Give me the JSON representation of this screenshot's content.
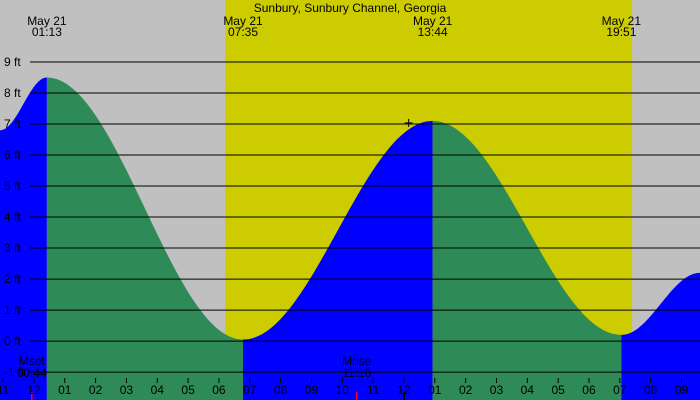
{
  "chart_data": {
    "type": "area",
    "title": "Sunbury, Sunbury Channel, Georgia",
    "xlabel": "",
    "ylabel": "",
    "x_range_hours": [
      23.7,
      46.4
    ],
    "ylim": [
      -1.9,
      11.0
    ],
    "yticks": [
      {
        "value": -1,
        "label": "-1 ft"
      },
      {
        "value": 0,
        "label": "0 ft"
      },
      {
        "value": 1,
        "label": "1 ft"
      },
      {
        "value": 2,
        "label": "2 ft"
      },
      {
        "value": 3,
        "label": "3 ft"
      },
      {
        "value": 4,
        "label": "4 ft"
      },
      {
        "value": 5,
        "label": "5 ft"
      },
      {
        "value": 6,
        "label": "6 ft"
      },
      {
        "value": 7,
        "label": "7 ft"
      },
      {
        "value": 8,
        "label": "8 ft"
      },
      {
        "value": 9,
        "label": "9 ft"
      }
    ],
    "hour_ticks": [
      {
        "hour": 23.8,
        "label": "11"
      },
      {
        "hour": 24.8,
        "label": "12"
      },
      {
        "hour": 25.8,
        "label": "01"
      },
      {
        "hour": 26.8,
        "label": "02"
      },
      {
        "hour": 27.8,
        "label": "03"
      },
      {
        "hour": 28.8,
        "label": "04"
      },
      {
        "hour": 29.8,
        "label": "05"
      },
      {
        "hour": 30.8,
        "label": "06"
      },
      {
        "hour": 31.8,
        "label": "07"
      },
      {
        "hour": 32.8,
        "label": "08"
      },
      {
        "hour": 33.8,
        "label": "09"
      },
      {
        "hour": 34.8,
        "label": "10"
      },
      {
        "hour": 35.8,
        "label": "11"
      },
      {
        "hour": 36.8,
        "label": "12"
      },
      {
        "hour": 37.8,
        "label": "01"
      },
      {
        "hour": 38.8,
        "label": "02"
      },
      {
        "hour": 39.8,
        "label": "03"
      },
      {
        "hour": 40.8,
        "label": "04"
      },
      {
        "hour": 41.8,
        "label": "05"
      },
      {
        "hour": 42.8,
        "label": "06"
      },
      {
        "hour": 43.8,
        "label": "07"
      },
      {
        "hour": 44.8,
        "label": "08"
      },
      {
        "hour": 45.8,
        "label": "09"
      }
    ],
    "extrema": [
      {
        "date": "May 21",
        "time": "01:13",
        "hour": 25.22,
        "height": 8.5,
        "kind": "high"
      },
      {
        "date": "May 21",
        "time": "07:35",
        "hour": 31.58,
        "height": 0.05,
        "kind": "low"
      },
      {
        "date": "May 21",
        "time": "13:44",
        "hour": 37.73,
        "height": 7.1,
        "kind": "high"
      },
      {
        "date": "May 21",
        "time": "19:51",
        "hour": 43.85,
        "height": 0.2,
        "kind": "low"
      }
    ],
    "tide_curve": {
      "start": {
        "hour": 23.7,
        "height": 6.8
      },
      "end": {
        "hour": 46.4,
        "height": 2.2
      }
    },
    "daylight": {
      "start_hour": 31.0,
      "end_hour": 44.2
    },
    "moon_events": [
      {
        "label": "Mset",
        "time": "00:44",
        "hour": 24.73
      },
      {
        "label": "Mrise",
        "time": "11:16",
        "hour": 35.27
      }
    ],
    "now_marker": {
      "hour": 36.8
    },
    "colors": {
      "night": "#c0c0c0",
      "day": "#cccc00",
      "rising": "#0000ff",
      "falling": "#2e8b57",
      "grid": "#000000",
      "moon_tick": "#ff0000"
    },
    "grid": true
  }
}
